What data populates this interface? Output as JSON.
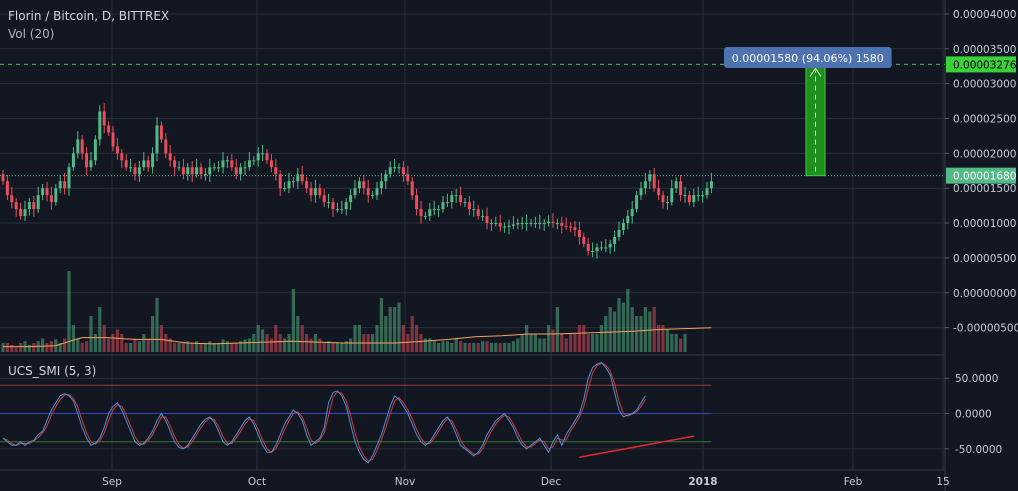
{
  "header": {
    "title": "Florin / Bitcoin, D, BITTREX",
    "volume": "Vol (20)",
    "oscillator": "UCS_SMI (5, 3)"
  },
  "chart_data": {
    "type": "candlestick",
    "price_axis": {
      "ticks": [
        "0.00004000",
        "0.00003500",
        "0.00003000",
        "0.00002500",
        "0.00002000",
        "0.00001500",
        "0.00001000",
        "0.00000500",
        "0.00000000",
        "-0.00000500"
      ],
      "last_price_label": "0.00001680",
      "target_label": "0.00003276",
      "ylim": [
        -8.5e-06,
        4.2e-05
      ]
    },
    "osc_axis": {
      "ticks": [
        "50.0000",
        "0.0000",
        "-50.0000"
      ],
      "ylim": [
        -80,
        80
      ],
      "levels": [
        40,
        0,
        -40
      ]
    },
    "time_axis": {
      "labels": [
        "Sep",
        "Oct",
        "Nov",
        "Dec",
        "2018",
        "Feb",
        "15"
      ]
    },
    "measure": {
      "label": "0.00001580 (94.06%) 1580",
      "from": 1.68e-05,
      "to": 3.276e-05
    },
    "close": [
      16,
      14,
      13,
      12,
      11,
      12,
      13,
      12,
      14,
      15,
      14,
      13,
      15,
      16,
      15,
      18,
      20,
      22,
      20,
      18,
      19,
      22,
      26,
      24,
      23,
      21,
      20,
      19,
      18,
      18,
      17,
      18,
      19,
      18,
      20,
      24,
      22,
      20,
      19,
      18,
      18,
      17,
      18,
      17,
      18,
      17,
      17,
      18,
      18,
      18,
      19,
      19,
      18,
      17,
      18,
      18,
      19,
      19,
      20,
      20,
      19,
      18,
      17,
      15,
      15,
      16,
      16,
      17,
      16,
      15,
      14,
      15,
      14,
      13,
      13,
      12,
      12,
      12,
      13,
      14,
      15,
      16,
      15,
      14,
      14,
      15,
      16,
      17,
      18,
      18,
      18,
      17,
      16,
      14,
      12,
      11,
      11,
      12,
      12,
      12,
      13,
      13,
      14,
      14,
      13,
      13,
      12,
      12,
      11,
      11,
      10,
      10,
      10,
      9.5,
      9.5,
      9.6,
      9.8,
      10,
      10,
      10,
      10,
      10,
      10,
      10,
      10.2,
      10,
      10,
      9.6,
      9.5,
      9.4,
      9,
      8,
      7,
      6,
      6,
      6.5,
      6.5,
      6.5,
      7,
      8,
      9,
      10,
      11,
      12,
      14,
      15,
      16,
      17,
      15,
      14,
      13,
      13,
      15,
      16,
      14,
      14,
      13,
      14,
      14,
      14,
      15,
      16
    ],
    "volume_rel": [
      0.1,
      0.1,
      0.08,
      0.05,
      0.1,
      0.12,
      0.08,
      0.1,
      0.12,
      0.15,
      0.1,
      0.12,
      0.14,
      0.1,
      0.15,
      0.9,
      0.3,
      0.15,
      0.1,
      0.12,
      0.4,
      0.2,
      0.5,
      0.3,
      0.15,
      0.2,
      0.25,
      0.2,
      0.1,
      0.1,
      0.15,
      0.12,
      0.2,
      0.15,
      0.4,
      0.6,
      0.3,
      0.2,
      0.15,
      0.1,
      0.1,
      0.1,
      0.12,
      0.1,
      0.12,
      0.1,
      0.1,
      0.12,
      0.1,
      0.1,
      0.14,
      0.12,
      0.1,
      0.1,
      0.12,
      0.14,
      0.15,
      0.2,
      0.3,
      0.25,
      0.2,
      0.15,
      0.3,
      0.2,
      0.15,
      0.2,
      0.7,
      0.4,
      0.3,
      0.2,
      0.15,
      0.2,
      0.15,
      0.1,
      0.12,
      0.1,
      0.1,
      0.1,
      0.12,
      0.15,
      0.3,
      0.3,
      0.2,
      0.2,
      0.2,
      0.3,
      0.6,
      0.4,
      0.5,
      0.5,
      0.55,
      0.3,
      0.2,
      0.4,
      0.3,
      0.2,
      0.15,
      0.15,
      0.12,
      0.1,
      0.12,
      0.12,
      0.1,
      0.15,
      0.12,
      0.1,
      0.1,
      0.1,
      0.1,
      0.12,
      0.12,
      0.1,
      0.1,
      0.1,
      0.1,
      0.1,
      0.12,
      0.15,
      0.2,
      0.3,
      0.2,
      0.2,
      0.15,
      0.15,
      0.3,
      0.25,
      0.5,
      0.2,
      0.15,
      0.2,
      0.2,
      0.3,
      0.3,
      0.2,
      0.2,
      0.2,
      0.3,
      0.4,
      0.5,
      0.45,
      0.6,
      0.55,
      0.7,
      0.5,
      0.4,
      0.4,
      0.5,
      0.45,
      0.5,
      0.3,
      0.3,
      0.25,
      0.2,
      0.2,
      0.15,
      0.2
    ],
    "volume_ma_rel": [
      0.06,
      0.06,
      0.07,
      0.16,
      0.16,
      0.14,
      0.14,
      0.1,
      0.09,
      0.1,
      0.11,
      0.12,
      0.11,
      0.1,
      0.1,
      0.1,
      0.12,
      0.14,
      0.17,
      0.18,
      0.2,
      0.2,
      0.21,
      0.22,
      0.23,
      0.25,
      0.26,
      0.27
    ],
    "smi": [
      -35,
      -40,
      -45,
      -45,
      -40,
      -45,
      -40,
      -38,
      -30,
      -25,
      -10,
      5,
      15,
      25,
      28,
      25,
      18,
      0,
      -20,
      -35,
      -45,
      -42,
      -35,
      -20,
      0,
      10,
      15,
      5,
      -10,
      -25,
      -40,
      -45,
      -42,
      -35,
      -25,
      -10,
      0,
      -10,
      -25,
      -40,
      -48,
      -50,
      -45,
      -35,
      -25,
      -15,
      -8,
      -5,
      -12,
      -25,
      -40,
      -45,
      -40,
      -30,
      -20,
      -10,
      -5,
      -15,
      -30,
      -45,
      -55,
      -55,
      -45,
      -30,
      -15,
      -5,
      5,
      0,
      -10,
      -30,
      -45,
      -40,
      -35,
      -20,
      15,
      30,
      32,
      25,
      10,
      -15,
      -40,
      -55,
      -65,
      -70,
      -60,
      -45,
      -30,
      -10,
      10,
      25,
      20,
      10,
      0,
      -15,
      -30,
      -40,
      -45,
      -40,
      -30,
      -20,
      -10,
      -5,
      -15,
      -30,
      -45,
      -50,
      -55,
      -60,
      -55,
      -45,
      -30,
      -20,
      -10,
      -5,
      0,
      -10,
      -20,
      -35,
      -45,
      -50,
      -45,
      -40,
      -35,
      -45,
      -55,
      -40,
      -30,
      -45,
      -30,
      -20,
      -10,
      0,
      20,
      50,
      65,
      70,
      72,
      65,
      55,
      30,
      5,
      -5,
      -2,
      0,
      5,
      15,
      25
    ],
    "divergence_line": {
      "from": [
        131,
        -62
      ],
      "to": [
        157,
        -32
      ]
    }
  }
}
